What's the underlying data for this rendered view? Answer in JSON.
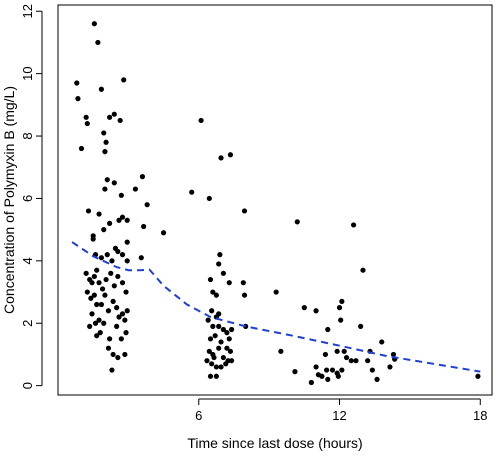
{
  "chart_data": {
    "type": "scatter",
    "title": "",
    "xlabel": "Time since last dose (hours)",
    "ylabel": "Concentration of Polymyxin B (mg/L)",
    "xlim": [
      0,
      18.5
    ],
    "ylim": [
      -0.3,
      12.2
    ],
    "xticks": [
      6,
      12,
      18
    ],
    "yticks": [
      0,
      2,
      4,
      6,
      8,
      10,
      12
    ],
    "grid": false,
    "legend": "none",
    "colors": {
      "points": "#000000",
      "trend": "#1f3fd6",
      "frame": "#000000"
    },
    "points": [
      [
        0.8,
        9.7
      ],
      [
        0.85,
        9.2
      ],
      [
        1.0,
        7.6
      ],
      [
        1.2,
        8.6
      ],
      [
        1.25,
        8.4
      ],
      [
        1.55,
        11.6
      ],
      [
        1.7,
        11.0
      ],
      [
        1.85,
        9.5
      ],
      [
        1.95,
        8.1
      ],
      [
        2.0,
        7.5
      ],
      [
        2.05,
        7.8
      ],
      [
        2.2,
        8.6
      ],
      [
        2.4,
        8.7
      ],
      [
        2.65,
        8.5
      ],
      [
        2.8,
        9.8
      ],
      [
        2.1,
        6.6
      ],
      [
        2.0,
        6.3
      ],
      [
        2.4,
        6.5
      ],
      [
        2.7,
        6.1
      ],
      [
        3.3,
        6.3
      ],
      [
        3.6,
        6.7
      ],
      [
        3.8,
        5.8
      ],
      [
        4.5,
        4.9
      ],
      [
        1.3,
        5.6
      ],
      [
        1.5,
        4.8
      ],
      [
        1.5,
        4.7
      ],
      [
        1.75,
        5.5
      ],
      [
        1.95,
        5.0
      ],
      [
        2.2,
        5.2
      ],
      [
        2.6,
        5.3
      ],
      [
        2.75,
        5.4
      ],
      [
        2.95,
        5.3
      ],
      [
        2.95,
        4.6
      ],
      [
        3.65,
        5.1
      ],
      [
        1.6,
        4.2
      ],
      [
        1.85,
        4.1
      ],
      [
        2.1,
        4.2
      ],
      [
        2.3,
        4.0
      ],
      [
        2.45,
        4.4
      ],
      [
        2.55,
        4.3
      ],
      [
        2.75,
        4.2
      ],
      [
        2.95,
        4.0
      ],
      [
        1.2,
        3.6
      ],
      [
        1.35,
        3.4
      ],
      [
        1.45,
        3.3
      ],
      [
        1.55,
        3.5
      ],
      [
        1.65,
        3.7
      ],
      [
        1.75,
        3.3
      ],
      [
        1.9,
        3.1
      ],
      [
        2.05,
        3.4
      ],
      [
        2.25,
        3.6
      ],
      [
        2.4,
        3.2
      ],
      [
        2.55,
        3.5
      ],
      [
        2.75,
        3.3
      ],
      [
        2.9,
        3.0
      ],
      [
        3.55,
        4.1
      ],
      [
        1.25,
        3.0
      ],
      [
        1.4,
        2.8
      ],
      [
        1.55,
        2.9
      ],
      [
        1.65,
        2.6
      ],
      [
        1.85,
        2.6
      ],
      [
        2.0,
        2.9
      ],
      [
        2.15,
        2.4
      ],
      [
        2.35,
        2.7
      ],
      [
        2.5,
        2.5
      ],
      [
        2.6,
        2.2
      ],
      [
        2.75,
        2.3
      ],
      [
        2.85,
        2.1
      ],
      [
        2.95,
        2.4
      ],
      [
        1.45,
        2.3
      ],
      [
        1.75,
        2.1
      ],
      [
        1.95,
        2.0
      ],
      [
        1.35,
        1.9
      ],
      [
        1.6,
        2.0
      ],
      [
        1.8,
        1.7
      ],
      [
        2.2,
        1.5
      ],
      [
        2.5,
        1.9
      ],
      [
        2.7,
        1.5
      ],
      [
        2.9,
        1.7
      ],
      [
        2.15,
        1.2
      ],
      [
        2.35,
        1.0
      ],
      [
        2.55,
        0.9
      ],
      [
        2.85,
        1.0
      ],
      [
        2.3,
        0.5
      ],
      [
        1.65,
        1.6
      ],
      [
        6.1,
        8.5
      ],
      [
        6.95,
        7.3
      ],
      [
        7.35,
        7.4
      ],
      [
        5.7,
        6.2
      ],
      [
        6.45,
        6.0
      ],
      [
        7.95,
        5.6
      ],
      [
        6.9,
        4.2
      ],
      [
        6.85,
        3.9
      ],
      [
        7.05,
        3.6
      ],
      [
        6.5,
        3.4
      ],
      [
        6.6,
        3.0
      ],
      [
        6.75,
        2.9
      ],
      [
        7.3,
        3.3
      ],
      [
        7.9,
        3.3
      ],
      [
        7.95,
        2.9
      ],
      [
        6.55,
        2.4
      ],
      [
        6.75,
        2.2
      ],
      [
        6.85,
        2.3
      ],
      [
        6.4,
        2.1
      ],
      [
        6.6,
        1.9
      ],
      [
        6.85,
        1.9
      ],
      [
        7.05,
        1.8
      ],
      [
        7.2,
        1.7
      ],
      [
        7.4,
        1.8
      ],
      [
        6.5,
        1.5
      ],
      [
        6.7,
        1.6
      ],
      [
        6.95,
        1.4
      ],
      [
        7.2,
        1.2
      ],
      [
        7.3,
        1.5
      ],
      [
        6.45,
        1.1
      ],
      [
        6.6,
        1.0
      ],
      [
        6.85,
        1.2
      ],
      [
        7.05,
        0.9
      ],
      [
        7.25,
        0.8
      ],
      [
        6.35,
        0.8
      ],
      [
        6.55,
        0.7
      ],
      [
        6.75,
        0.6
      ],
      [
        6.95,
        0.6
      ],
      [
        7.15,
        0.7
      ],
      [
        7.4,
        0.8
      ],
      [
        6.5,
        0.3
      ],
      [
        6.75,
        0.3
      ],
      [
        6.65,
        0.9
      ],
      [
        7.35,
        1.1
      ],
      [
        8.0,
        1.9
      ],
      [
        10.2,
        5.25
      ],
      [
        12.6,
        5.15
      ],
      [
        13.0,
        3.7
      ],
      [
        9.3,
        3.0
      ],
      [
        10.5,
        2.5
      ],
      [
        11.0,
        2.4
      ],
      [
        12.0,
        2.5
      ],
      [
        12.1,
        2.7
      ],
      [
        12.05,
        2.1
      ],
      [
        11.5,
        1.8
      ],
      [
        12.9,
        1.9
      ],
      [
        13.8,
        1.4
      ],
      [
        9.5,
        1.1
      ],
      [
        11.4,
        1.0
      ],
      [
        11.9,
        1.1
      ],
      [
        12.2,
        1.1
      ],
      [
        12.3,
        0.9
      ],
      [
        12.5,
        0.8
      ],
      [
        12.7,
        0.8
      ],
      [
        13.2,
        0.8
      ],
      [
        13.3,
        1.1
      ],
      [
        14.3,
        1.0
      ],
      [
        13.4,
        0.5
      ],
      [
        10.1,
        0.45
      ],
      [
        11.0,
        0.6
      ],
      [
        11.1,
        0.35
      ],
      [
        11.45,
        0.5
      ],
      [
        11.5,
        0.2
      ],
      [
        11.7,
        0.5
      ],
      [
        11.9,
        0.4
      ],
      [
        11.95,
        0.3
      ],
      [
        12.1,
        0.5
      ],
      [
        10.8,
        0.1
      ],
      [
        11.25,
        0.3
      ],
      [
        13.6,
        0.2
      ],
      [
        14.15,
        0.6
      ],
      [
        14.35,
        0.85
      ],
      [
        17.9,
        0.3
      ]
    ],
    "trend_line": [
      [
        0.6,
        4.6
      ],
      [
        1.5,
        4.15
      ],
      [
        2.5,
        3.8
      ],
      [
        3.0,
        3.7
      ],
      [
        3.5,
        3.7
      ],
      [
        3.9,
        3.72
      ],
      [
        4.5,
        3.2
      ],
      [
        5.5,
        2.6
      ],
      [
        6.5,
        2.2
      ],
      [
        8.0,
        1.9
      ],
      [
        10.0,
        1.6
      ],
      [
        12.0,
        1.28
      ],
      [
        14.0,
        0.95
      ],
      [
        16.0,
        0.7
      ],
      [
        18.0,
        0.45
      ]
    ]
  }
}
